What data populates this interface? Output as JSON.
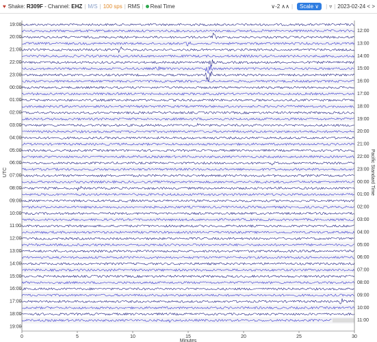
{
  "toolbar": {
    "shake_label": "Shake:",
    "station": "R309F",
    "channel_label": "- Channel:",
    "channel": "EHZ",
    "units": "M/S",
    "rate": "100 sps",
    "mode": "RMS",
    "live": "Real Time",
    "zoom": "-2",
    "scale_button": "Scale",
    "date": "2023-02-24"
  },
  "helicorder": {
    "left_axis_label": "UTC",
    "right_axis_label": "Pacific Standard Time",
    "left_labels": [
      "19:00",
      "20:00",
      "21:00",
      "22:00",
      "23:00",
      "00:00",
      "01:00",
      "02:00",
      "03:00",
      "04:00",
      "05:00",
      "06:00",
      "07:00",
      "08:00",
      "09:00",
      "10:00",
      "11:00",
      "12:00",
      "13:00",
      "14:00",
      "15:00",
      "16:00",
      "17:00",
      "18:00",
      "19:00"
    ],
    "right_labels": [
      "12:00",
      "13:00",
      "14:00",
      "15:00",
      "16:00",
      "17:00",
      "18:00",
      "19:00",
      "20:00",
      "21:00",
      "22:00",
      "23:00",
      "00:00",
      "01:00",
      "02:00",
      "03:00",
      "04:00",
      "05:00",
      "06:00",
      "07:00",
      "08:00",
      "09:00",
      "10:00",
      "11:00"
    ],
    "x_axis": {
      "label": "Minutes",
      "lim": [
        0,
        30
      ],
      "ticks": [
        0,
        5,
        10,
        15,
        20,
        25,
        30
      ]
    }
  }
}
